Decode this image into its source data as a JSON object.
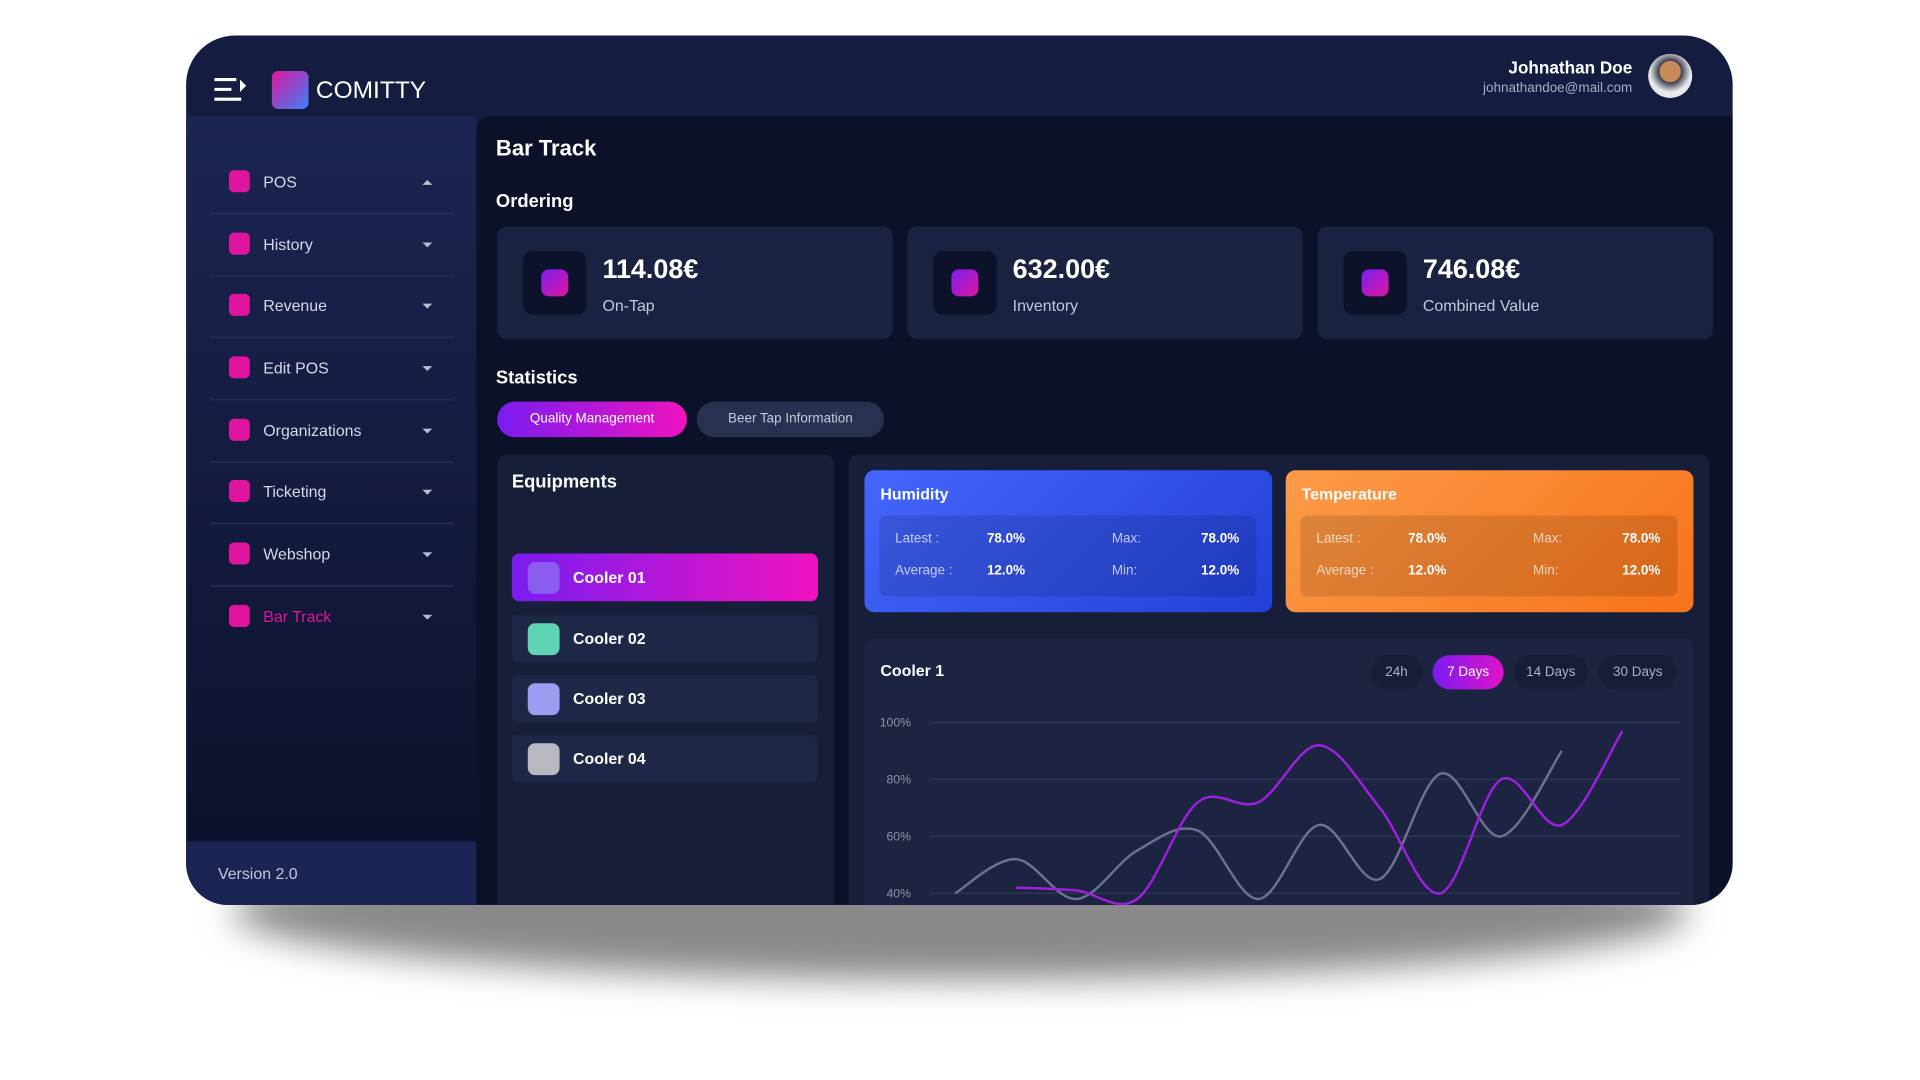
{
  "header": {
    "brand": "COMITTY",
    "user_name": "Johnathan Doe",
    "user_email": "johnathandoe@mail.com"
  },
  "sidebar": {
    "items": [
      "POS",
      "History",
      "Revenue",
      "Edit POS",
      "Organizations",
      "Ticketing",
      "Webshop",
      "Bar Track"
    ],
    "version": "Version 2.0"
  },
  "page_title": "Bar Track",
  "ordering": {
    "title": "Ordering",
    "cards": [
      {
        "value": "114.08€",
        "label": "On-Tap"
      },
      {
        "value": "632.00€",
        "label": "Inventory"
      },
      {
        "value": "746.08€",
        "label": "Combined Value"
      }
    ]
  },
  "statistics": {
    "title": "Statistics",
    "tabs": [
      "Quality Management",
      "Beer Tap Information"
    ]
  },
  "equipments": {
    "title": "Equipments",
    "items": [
      "Cooler 01",
      "Cooler 02",
      "Cooler 03",
      "Cooler 04"
    ]
  },
  "sensors": [
    {
      "title": "Humidity",
      "rows": [
        [
          "Latest :",
          "78.0%",
          "Max:",
          "78.0%"
        ],
        [
          "Average :",
          "12.0%",
          "Min:",
          "12.0%"
        ]
      ]
    },
    {
      "title": "Temperature",
      "rows": [
        [
          "Latest :",
          "78.0%",
          "Max:",
          "78.0%"
        ],
        [
          "Average :",
          "12.0%",
          "Min:",
          "12.0%"
        ]
      ]
    }
  ],
  "chart_controls": {
    "ranges": [
      "24h",
      "7 Days",
      "14 Days",
      "30 Days"
    ]
  },
  "chart_data": {
    "type": "line",
    "title": "Cooler 1",
    "categories": [
      null,
      null,
      null,
      null,
      null,
      null,
      null,
      null,
      null,
      null,
      null,
      null
    ],
    "series": [
      {
        "color": "#6b7391",
        "values": [
          40,
          52,
          38,
          55,
          62,
          38,
          64,
          45,
          82,
          60,
          90,
          null
        ]
      },
      {
        "color": "#9d1fe0",
        "values": [
          null,
          42,
          41,
          38,
          72,
          72,
          92,
          70,
          40,
          80,
          64,
          97
        ]
      }
    ],
    "ylim": [
      37,
      104
    ],
    "yticks": [
      {
        "value": 100,
        "label": "100%"
      },
      {
        "value": 80,
        "label": "80%"
      },
      {
        "value": 60,
        "label": "60%"
      },
      {
        "value": 40,
        "label": "40%"
      }
    ],
    "grid": true
  }
}
